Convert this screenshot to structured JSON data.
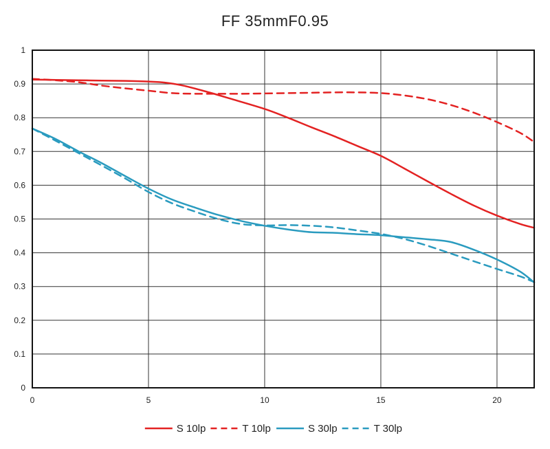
{
  "chart_data": {
    "type": "line",
    "title": "FF 35mmF0.95",
    "xlabel": "",
    "ylabel": "",
    "xlim": [
      0,
      21.6
    ],
    "ylim": [
      0,
      1
    ],
    "x_ticks": [
      0,
      5,
      10,
      15,
      20
    ],
    "x_tick_labels": [
      "0",
      "5",
      "10",
      "15",
      "20"
    ],
    "y_ticks": [
      0,
      0.1,
      0.2,
      0.3,
      0.4,
      0.5,
      0.6,
      0.7,
      0.8,
      0.9,
      1
    ],
    "y_tick_labels": [
      "0",
      "0.1",
      "0.2",
      "0.3",
      "0.4",
      "0.5",
      "0.6",
      "0.7",
      "0.8",
      "0.9",
      "1"
    ],
    "grid": true,
    "legend_position": "bottom",
    "series": [
      {
        "name": "S 10lp",
        "color": "#e32222",
        "dash": "solid",
        "points": [
          [
            0,
            0.913
          ],
          [
            1,
            0.912
          ],
          [
            2,
            0.911
          ],
          [
            3,
            0.91
          ],
          [
            4,
            0.909
          ],
          [
            5,
            0.907
          ],
          [
            5.7,
            0.904
          ],
          [
            6.5,
            0.895
          ],
          [
            7.5,
            0.877
          ],
          [
            8.5,
            0.857
          ],
          [
            10,
            0.826
          ],
          [
            11,
            0.8
          ],
          [
            12,
            0.772
          ],
          [
            13,
            0.745
          ],
          [
            14,
            0.716
          ],
          [
            15,
            0.687
          ],
          [
            16,
            0.65
          ],
          [
            17,
            0.612
          ],
          [
            18,
            0.575
          ],
          [
            19,
            0.54
          ],
          [
            20,
            0.51
          ],
          [
            21,
            0.485
          ],
          [
            21.6,
            0.474
          ]
        ]
      },
      {
        "name": "T 10lp",
        "color": "#e32222",
        "dash": "dashed",
        "points": [
          [
            0,
            0.915
          ],
          [
            1,
            0.911
          ],
          [
            2,
            0.905
          ],
          [
            3,
            0.895
          ],
          [
            4,
            0.887
          ],
          [
            5,
            0.88
          ],
          [
            6,
            0.873
          ],
          [
            7,
            0.871
          ],
          [
            8,
            0.871
          ],
          [
            9,
            0.871
          ],
          [
            10,
            0.872
          ],
          [
            11,
            0.873
          ],
          [
            12,
            0.874
          ],
          [
            13,
            0.875
          ],
          [
            14,
            0.875
          ],
          [
            15,
            0.873
          ],
          [
            16,
            0.866
          ],
          [
            17,
            0.855
          ],
          [
            18,
            0.838
          ],
          [
            19,
            0.815
          ],
          [
            20,
            0.787
          ],
          [
            21,
            0.755
          ],
          [
            21.6,
            0.728
          ]
        ]
      },
      {
        "name": "S 30lp",
        "color": "#2a9bbf",
        "dash": "solid",
        "points": [
          [
            0,
            0.768
          ],
          [
            1,
            0.737
          ],
          [
            2,
            0.7
          ],
          [
            3,
            0.665
          ],
          [
            4,
            0.627
          ],
          [
            5,
            0.59
          ],
          [
            6,
            0.558
          ],
          [
            7,
            0.534
          ],
          [
            8,
            0.512
          ],
          [
            9,
            0.494
          ],
          [
            10,
            0.48
          ],
          [
            11,
            0.469
          ],
          [
            12,
            0.461
          ],
          [
            13,
            0.459
          ],
          [
            14,
            0.455
          ],
          [
            15,
            0.452
          ],
          [
            16,
            0.446
          ],
          [
            17,
            0.44
          ],
          [
            18,
            0.432
          ],
          [
            19,
            0.409
          ],
          [
            20,
            0.38
          ],
          [
            21,
            0.344
          ],
          [
            21.6,
            0.312
          ]
        ]
      },
      {
        "name": "T 30lp",
        "color": "#2a9bbf",
        "dash": "dashed",
        "points": [
          [
            0,
            0.768
          ],
          [
            1,
            0.732
          ],
          [
            2,
            0.695
          ],
          [
            3,
            0.658
          ],
          [
            4,
            0.62
          ],
          [
            5,
            0.58
          ],
          [
            6,
            0.547
          ],
          [
            7,
            0.522
          ],
          [
            8,
            0.5
          ],
          [
            9,
            0.485
          ],
          [
            10,
            0.481
          ],
          [
            11,
            0.482
          ],
          [
            12,
            0.48
          ],
          [
            13,
            0.475
          ],
          [
            14,
            0.466
          ],
          [
            15,
            0.456
          ],
          [
            16,
            0.441
          ],
          [
            17,
            0.421
          ],
          [
            18,
            0.398
          ],
          [
            19,
            0.375
          ],
          [
            20,
            0.352
          ],
          [
            21,
            0.33
          ],
          [
            21.6,
            0.313
          ]
        ]
      }
    ]
  }
}
